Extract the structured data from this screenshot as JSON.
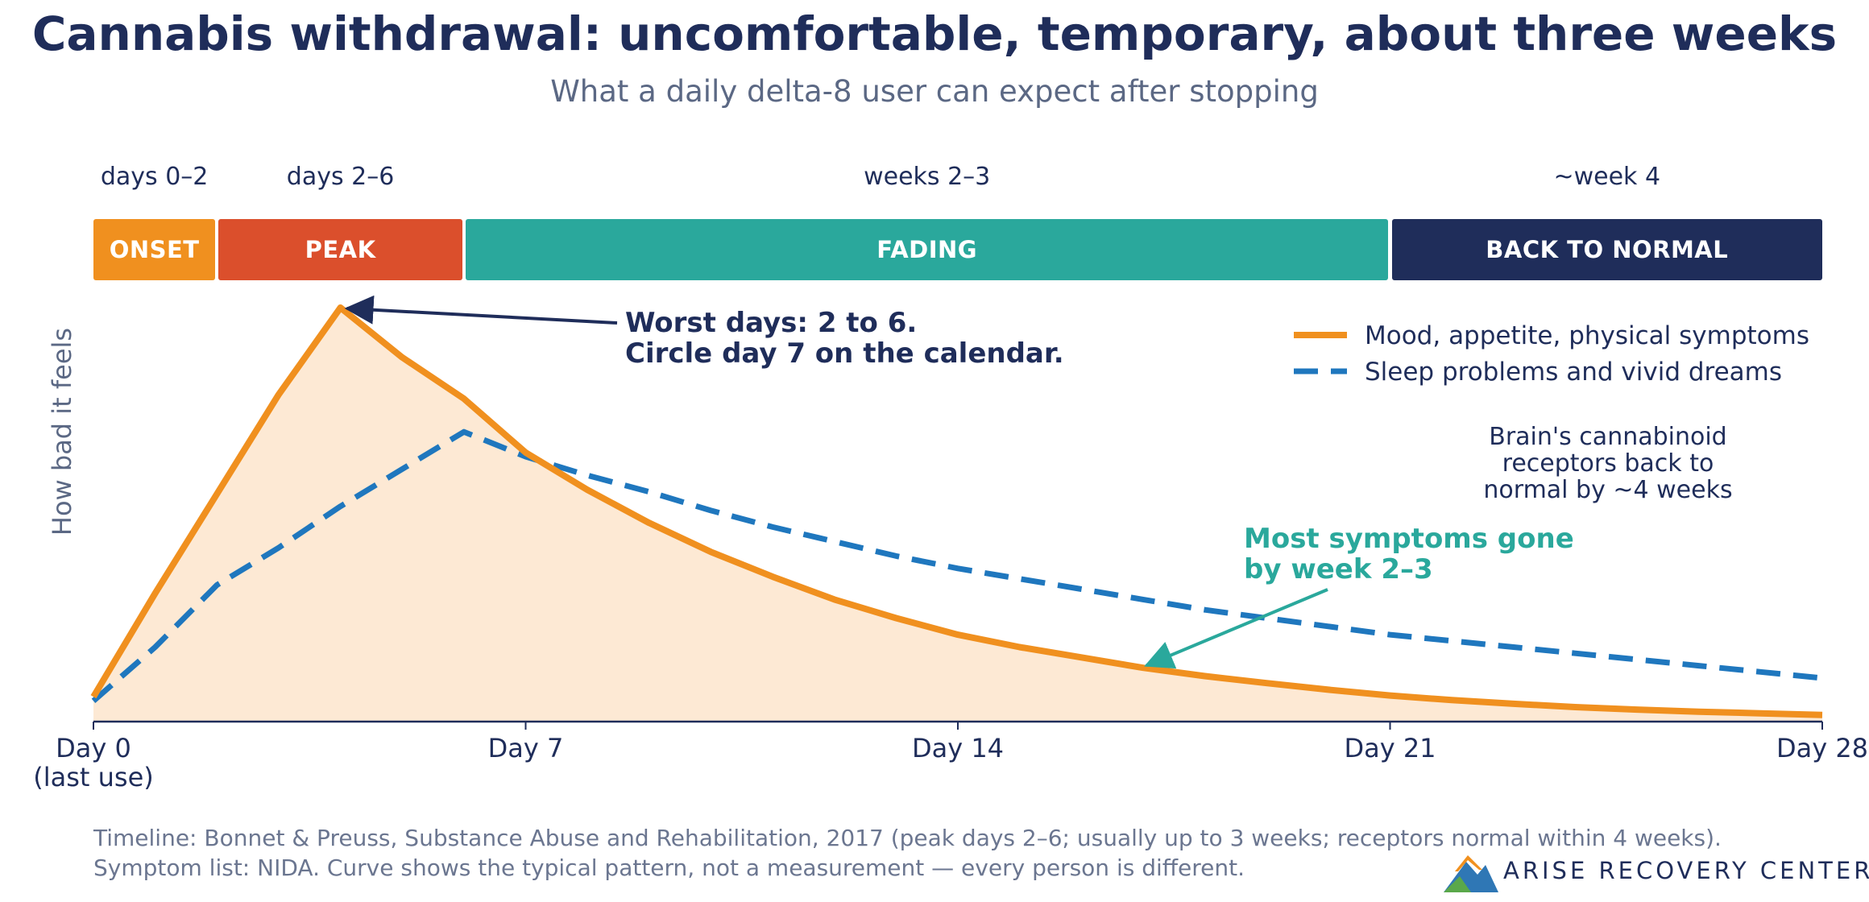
{
  "chart_data": {
    "type": "line",
    "title": "Cannabis withdrawal: uncomfortable, temporary, about three weeks",
    "subtitle": "What a daily delta-8 user can expect after stopping",
    "ylabel": "How bad it feels",
    "xlim": [
      0,
      28
    ],
    "ylim": [
      0,
      1
    ],
    "x_ticks": [
      {
        "value": 0,
        "label": "Day 0",
        "sublabel": "(last use)"
      },
      {
        "value": 7,
        "label": "Day 7"
      },
      {
        "value": 14,
        "label": "Day 14"
      },
      {
        "value": 21,
        "label": "Day 21"
      },
      {
        "value": 28,
        "label": "Day 28"
      }
    ],
    "phases": [
      {
        "range_label": "days 0–2",
        "name": "ONSET",
        "start": 0,
        "end": 2,
        "color": "#f0901f"
      },
      {
        "range_label": "days 2–6",
        "name": "PEAK",
        "start": 2,
        "end": 6,
        "color": "#db4f2c"
      },
      {
        "range_label": "weeks 2–3",
        "name": "FADING",
        "start": 6,
        "end": 21,
        "color": "#2aa89c"
      },
      {
        "range_label": "~week 4",
        "name": "BACK TO NORMAL",
        "start": 21,
        "end": 28,
        "color": "#1f2d5a"
      }
    ],
    "legend_position": "top-right",
    "series": [
      {
        "name": "Mood, appetite, physical symptoms",
        "color": "#f0901f",
        "style": "solid",
        "filled": true,
        "points": [
          [
            0,
            0.06
          ],
          [
            1,
            0.31
          ],
          [
            2,
            0.55
          ],
          [
            3,
            0.79
          ],
          [
            4,
            1.0
          ],
          [
            5,
            0.88
          ],
          [
            6,
            0.78
          ],
          [
            7,
            0.65
          ],
          [
            8,
            0.56
          ],
          [
            9,
            0.48
          ],
          [
            10,
            0.41
          ],
          [
            11,
            0.35
          ],
          [
            12,
            0.295
          ],
          [
            13,
            0.25
          ],
          [
            14,
            0.21
          ],
          [
            15,
            0.18
          ],
          [
            16,
            0.155
          ],
          [
            17,
            0.13
          ],
          [
            18,
            0.11
          ],
          [
            19,
            0.093
          ],
          [
            20,
            0.077
          ],
          [
            21,
            0.063
          ],
          [
            22,
            0.052
          ],
          [
            23,
            0.043
          ],
          [
            24,
            0.035
          ],
          [
            25,
            0.029
          ],
          [
            26,
            0.024
          ],
          [
            27,
            0.02
          ],
          [
            28,
            0.016
          ]
        ]
      },
      {
        "name": "Sleep problems and vivid dreams",
        "color": "#1f77be",
        "style": "dashed",
        "points": [
          [
            0,
            0.05
          ],
          [
            1,
            0.18
          ],
          [
            2,
            0.33
          ],
          [
            3,
            0.42
          ],
          [
            4,
            0.52
          ],
          [
            5,
            0.61
          ],
          [
            6,
            0.7
          ],
          [
            7,
            0.64
          ],
          [
            8,
            0.595
          ],
          [
            9,
            0.555
          ],
          [
            10,
            0.51
          ],
          [
            11,
            0.47
          ],
          [
            12,
            0.435
          ],
          [
            13,
            0.4
          ],
          [
            14,
            0.37
          ],
          [
            15,
            0.345
          ],
          [
            16,
            0.32
          ],
          [
            17,
            0.295
          ],
          [
            18,
            0.27
          ],
          [
            19,
            0.25
          ],
          [
            20,
            0.23
          ],
          [
            21,
            0.21
          ],
          [
            22,
            0.195
          ],
          [
            23,
            0.18
          ],
          [
            24,
            0.165
          ],
          [
            25,
            0.15
          ],
          [
            26,
            0.135
          ],
          [
            27,
            0.12
          ],
          [
            28,
            0.105
          ]
        ]
      }
    ],
    "annotations": [
      {
        "line1": "Worst days: 2 to 6.",
        "line2": "Circle day 7 on the calendar.",
        "target_x": 4,
        "target_y": 1.0,
        "color": "#1f2d5a"
      },
      {
        "line1": "Most symptoms gone",
        "line2": "by week 2–3",
        "target_x": 17,
        "target_y": 0.12,
        "color": "#2aa89c"
      },
      {
        "line1": "Brain's cannabinoid",
        "line2": "receptors back to",
        "line3": "normal by ~4 weeks",
        "color": "#1f2d5a"
      }
    ]
  },
  "footer": {
    "line1": "Timeline: Bonnet & Preuss, Substance Abuse and Rehabilitation, 2017 (peak days 2–6; usually up to 3 weeks; receptors normal within 4 weeks).",
    "line2": "Symptom list: NIDA. Curve shows the typical pattern, not a measurement — every person is different."
  },
  "logo": {
    "text": "ARISE RECOVERY CENTERS",
    "icon": "mountain-logo-icon"
  }
}
